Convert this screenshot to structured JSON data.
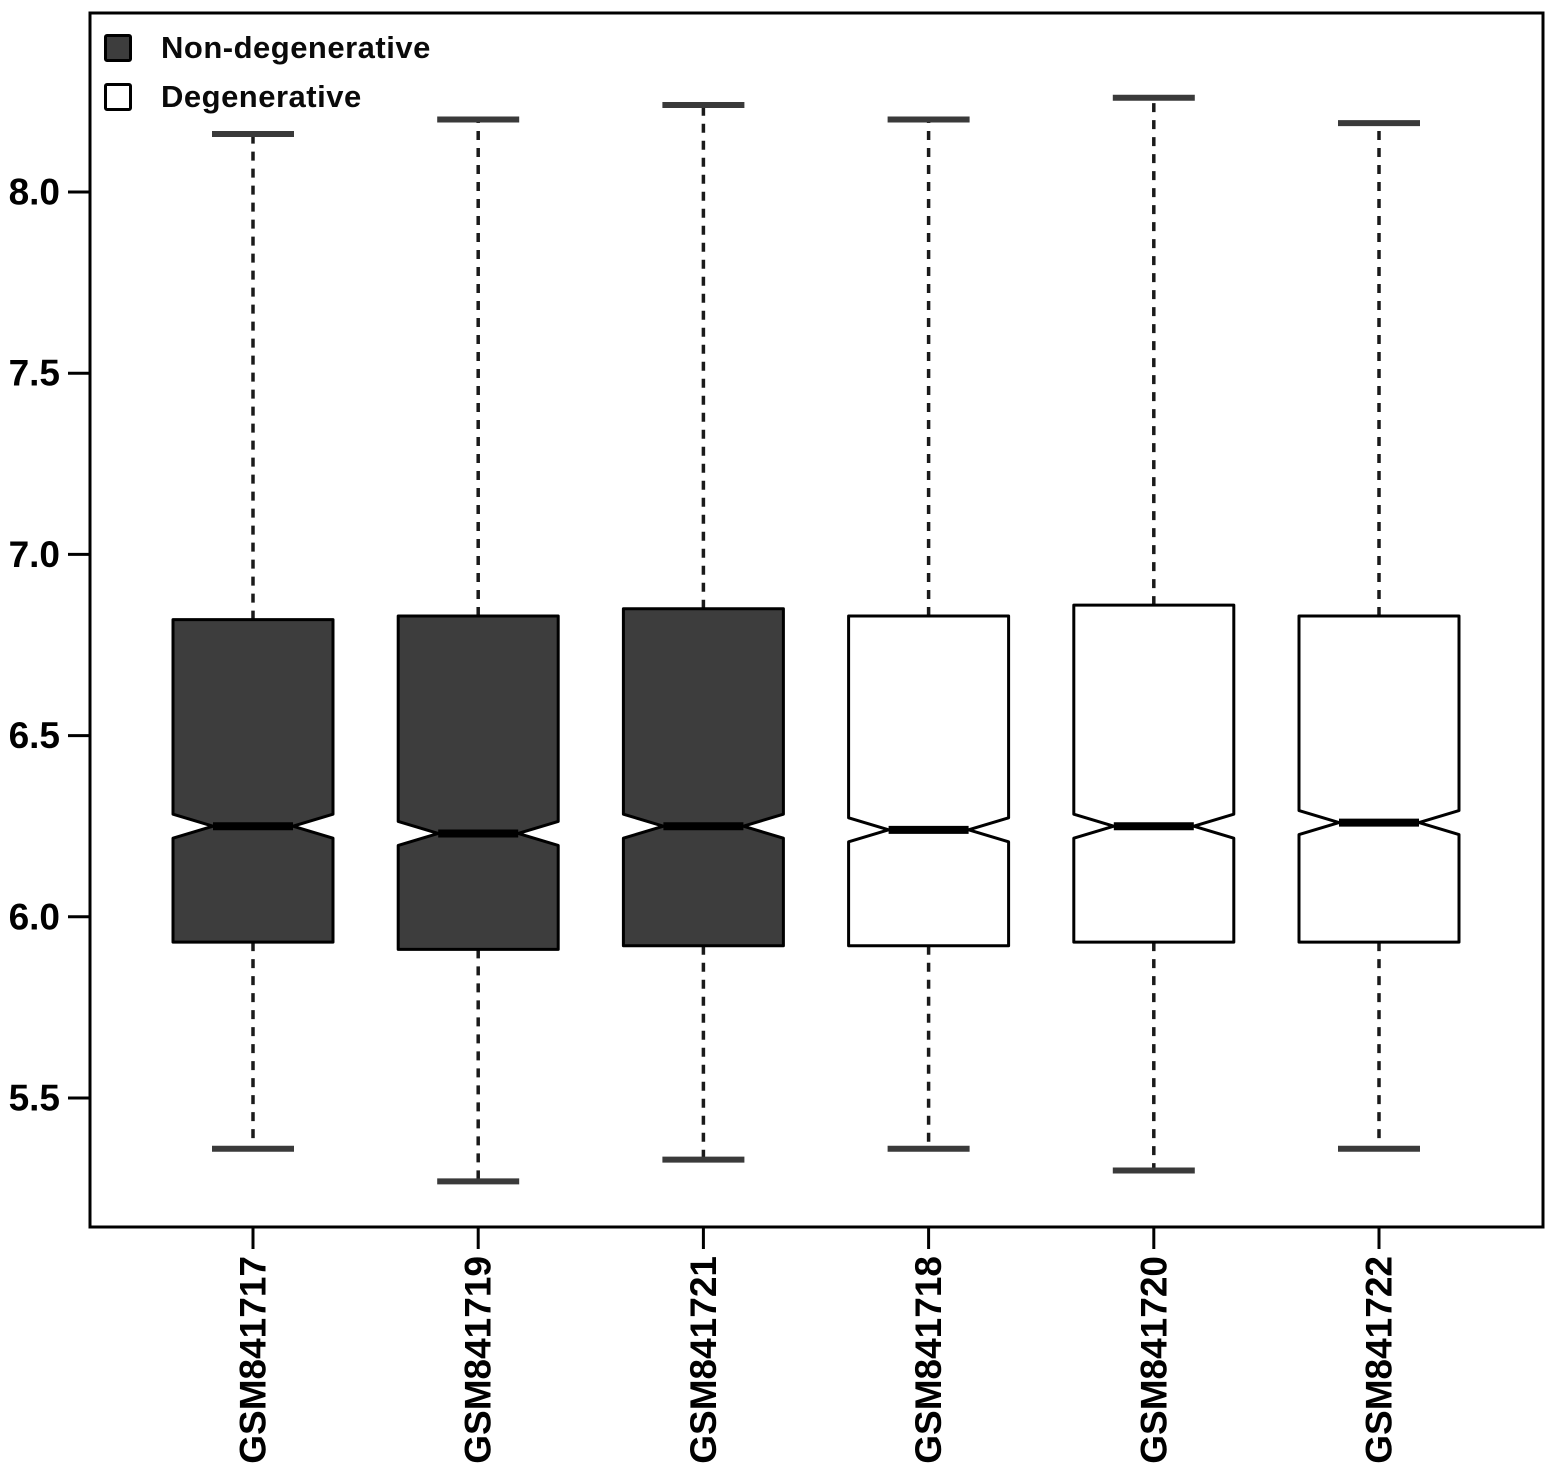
{
  "figure": {
    "background": "#ffffff",
    "border_color": "#000000",
    "legend": {
      "items": [
        {
          "label": "Non-degenerative",
          "fill": "#3d3d3d"
        },
        {
          "label": "Degenerative",
          "fill": "#ffffff"
        }
      ]
    }
  },
  "chart_data": {
    "type": "boxplot",
    "notched": true,
    "grid": false,
    "title": "",
    "xlabel": "",
    "ylabel": "",
    "legend_position": "top-left",
    "categories": [
      "GSM841717",
      "GSM841719",
      "GSM841721",
      "GSM841718",
      "GSM841720",
      "GSM841722"
    ],
    "groups": [
      "Non-degenerative",
      "Non-degenerative",
      "Non-degenerative",
      "Degenerative",
      "Degenerative",
      "Degenerative"
    ],
    "group_fills": {
      "Non-degenerative": "#3d3d3d",
      "Degenerative": "#ffffff"
    },
    "series": [
      {
        "name": "GSM841717",
        "group": "Non-degenerative",
        "whisker_low": 5.36,
        "q1": 5.93,
        "median": 6.25,
        "q3": 6.82,
        "whisker_high": 8.16
      },
      {
        "name": "GSM841719",
        "group": "Non-degenerative",
        "whisker_low": 5.27,
        "q1": 5.91,
        "median": 6.23,
        "q3": 6.83,
        "whisker_high": 8.2
      },
      {
        "name": "GSM841721",
        "group": "Non-degenerative",
        "whisker_low": 5.33,
        "q1": 5.92,
        "median": 6.25,
        "q3": 6.85,
        "whisker_high": 8.24
      },
      {
        "name": "GSM841718",
        "group": "Degenerative",
        "whisker_low": 5.36,
        "q1": 5.92,
        "median": 6.24,
        "q3": 6.83,
        "whisker_high": 8.2
      },
      {
        "name": "GSM841720",
        "group": "Degenerative",
        "whisker_low": 5.3,
        "q1": 5.93,
        "median": 6.25,
        "q3": 6.86,
        "whisker_high": 8.26
      },
      {
        "name": "GSM841722",
        "group": "Degenerative",
        "whisker_low": 5.36,
        "q1": 5.93,
        "median": 6.26,
        "q3": 6.83,
        "whisker_high": 8.19
      }
    ],
    "yticks": [
      5.5,
      6.0,
      6.5,
      7.0,
      7.5,
      8.0
    ],
    "ylim": [
      5.144,
      8.494
    ]
  }
}
